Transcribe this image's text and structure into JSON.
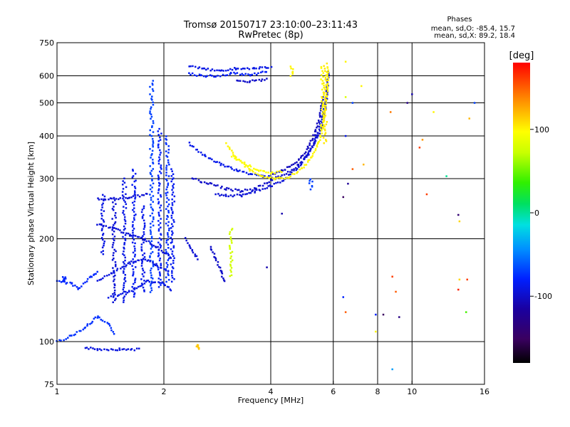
{
  "chart_data": {
    "type": "scatter",
    "title": "Tromsø 20150717 23:10:00–23:11:43",
    "subtitle": "RwPretec (8p)",
    "xlabel": "Frequency [MHz]",
    "ylabel": "Stationary phase Virtual Height [km]",
    "x_scale": "log",
    "y_scale": "log",
    "xlim": [
      1,
      16
    ],
    "ylim": [
      75,
      750
    ],
    "x_ticks": [
      1,
      2,
      4,
      6,
      8,
      10,
      16
    ],
    "x_tick_labels": [
      "1",
      "2",
      "4",
      "6",
      "8",
      "10",
      "16"
    ],
    "y_ticks": [
      75,
      100,
      200,
      300,
      400,
      500,
      600,
      750
    ],
    "y_tick_labels": [
      "75",
      "100",
      "200",
      "300",
      "400",
      "500",
      "600",
      "750"
    ],
    "grid": true,
    "info": {
      "heading": "Phases",
      "line_o": "mean, sd,O: -85.4, 15.7",
      "line_x": "mean, sd,X: 89.2, 18.4"
    },
    "colorbar": {
      "label": "[deg]",
      "range": [
        -180,
        180
      ],
      "ticks": [
        100,
        0,
        -100
      ],
      "tick_labels": [
        "100",
        "0",
        "-100"
      ]
    },
    "traces": [
      {
        "kind": "vline",
        "f": 1.05,
        "h0": 150,
        "h1": 155,
        "phase": -78
      },
      {
        "kind": "curve",
        "points": [
          [
            1.0,
            150
          ],
          [
            1.1,
            148
          ],
          [
            1.15,
            143
          ],
          [
            1.25,
            155
          ],
          [
            1.3,
            160
          ]
        ],
        "phase": -78
      },
      {
        "kind": "curve",
        "points": [
          [
            1.0,
            100
          ],
          [
            1.1,
            104
          ],
          [
            1.2,
            110
          ],
          [
            1.3,
            118
          ],
          [
            1.4,
            112
          ],
          [
            1.45,
            106
          ]
        ],
        "phase": -75
      },
      {
        "kind": "curve",
        "points": [
          [
            1.2,
            96
          ],
          [
            1.3,
            95
          ],
          [
            1.5,
            95
          ],
          [
            1.7,
            95
          ]
        ],
        "phase": -92
      },
      {
        "kind": "vline",
        "f": 1.35,
        "h0": 180,
        "h1": 270,
        "phase": -90
      },
      {
        "kind": "vline",
        "f": 1.45,
        "h0": 130,
        "h1": 260,
        "phase": -95
      },
      {
        "kind": "vline",
        "f": 1.55,
        "h0": 130,
        "h1": 300,
        "phase": -90
      },
      {
        "kind": "vline",
        "f": 1.65,
        "h0": 135,
        "h1": 320,
        "phase": -85
      },
      {
        "kind": "vline",
        "f": 1.75,
        "h0": 140,
        "h1": 250,
        "phase": -88
      },
      {
        "kind": "vline",
        "f": 1.85,
        "h0": 140,
        "h1": 580,
        "phase": -70
      },
      {
        "kind": "vline",
        "f": 1.95,
        "h0": 145,
        "h1": 420,
        "phase": -82
      },
      {
        "kind": "vline",
        "f": 2.05,
        "h0": 150,
        "h1": 400,
        "phase": -76
      },
      {
        "kind": "vline",
        "f": 2.12,
        "h0": 150,
        "h1": 320,
        "phase": -86
      },
      {
        "kind": "curve",
        "points": [
          [
            1.3,
            220
          ],
          [
            1.45,
            215
          ],
          [
            1.6,
            205
          ],
          [
            1.75,
            200
          ],
          [
            1.9,
            190
          ],
          [
            2.1,
            175
          ]
        ],
        "phase": -95
      },
      {
        "kind": "curve",
        "points": [
          [
            1.3,
            150
          ],
          [
            1.45,
            160
          ],
          [
            1.6,
            170
          ],
          [
            1.75,
            175
          ],
          [
            1.9,
            168
          ],
          [
            2.05,
            160
          ]
        ],
        "phase": -92
      },
      {
        "kind": "curve",
        "points": [
          [
            1.4,
            135
          ],
          [
            1.6,
            140
          ],
          [
            1.8,
            150
          ],
          [
            2.0,
            148
          ],
          [
            2.1,
            142
          ]
        ],
        "phase": -90
      },
      {
        "kind": "curve",
        "points": [
          [
            1.3,
            262
          ],
          [
            1.45,
            262
          ],
          [
            1.6,
            265
          ],
          [
            1.8,
            270
          ]
        ],
        "phase": -96
      },
      {
        "kind": "curve",
        "points": [
          [
            2.35,
            610
          ],
          [
            2.55,
            600
          ],
          [
            2.8,
            598
          ],
          [
            3.1,
            610
          ],
          [
            3.5,
            602
          ],
          [
            3.9,
            620
          ]
        ],
        "phase": -82
      },
      {
        "kind": "curve",
        "points": [
          [
            2.35,
            640
          ],
          [
            2.6,
            628
          ],
          [
            2.9,
            622
          ],
          [
            3.2,
            630
          ],
          [
            3.6,
            630
          ],
          [
            4.0,
            635
          ]
        ],
        "phase": -90
      },
      {
        "kind": "curve",
        "points": [
          [
            3.2,
            580
          ],
          [
            3.5,
            578
          ],
          [
            3.9,
            585
          ]
        ],
        "phase": -100
      },
      {
        "kind": "curve",
        "points": [
          [
            2.35,
            380
          ],
          [
            2.6,
            350
          ],
          [
            2.9,
            330
          ],
          [
            3.2,
            318
          ],
          [
            3.5,
            310
          ],
          [
            3.8,
            305
          ],
          [
            4.05,
            303
          ]
        ],
        "phase": -88
      },
      {
        "kind": "curve",
        "points": [
          [
            2.4,
            300
          ],
          [
            2.7,
            290
          ],
          [
            3.0,
            280
          ],
          [
            3.3,
            276
          ],
          [
            3.6,
            280
          ],
          [
            3.9,
            292
          ],
          [
            4.2,
            303
          ],
          [
            4.6,
            318
          ],
          [
            5.0,
            345
          ],
          [
            5.3,
            380
          ],
          [
            5.55,
            420
          ],
          [
            5.7,
            480
          ],
          [
            5.8,
            560
          ]
        ],
        "phase": -100
      },
      {
        "kind": "curve",
        "points": [
          [
            2.8,
            270
          ],
          [
            3.0,
            268
          ],
          [
            3.3,
            268
          ],
          [
            3.6,
            275
          ],
          [
            4.0,
            285
          ],
          [
            4.4,
            300
          ],
          [
            4.8,
            325
          ],
          [
            5.1,
            355
          ],
          [
            5.4,
            400
          ],
          [
            5.6,
            460
          ],
          [
            5.75,
            530
          ],
          [
            5.82,
            620
          ]
        ],
        "phase": -95
      },
      {
        "kind": "curve",
        "points": [
          [
            4.05,
            310
          ],
          [
            4.4,
            320
          ],
          [
            4.8,
            340
          ],
          [
            5.1,
            370
          ],
          [
            5.35,
            410
          ],
          [
            5.5,
            460
          ],
          [
            5.62,
            520
          ]
        ],
        "phase": -104
      },
      {
        "kind": "curve",
        "points": [
          [
            3.0,
            380
          ],
          [
            3.2,
            345
          ],
          [
            3.5,
            318
          ],
          [
            3.8,
            305
          ],
          [
            4.1,
            300
          ],
          [
            4.5,
            303
          ],
          [
            4.9,
            320
          ],
          [
            5.2,
            345
          ],
          [
            5.45,
            380
          ],
          [
            5.6,
            420
          ],
          [
            5.7,
            480
          ],
          [
            5.78,
            550
          ],
          [
            5.8,
            640
          ]
        ],
        "phase": 100
      },
      {
        "kind": "curve",
        "points": [
          [
            3.1,
            350
          ],
          [
            3.4,
            330
          ],
          [
            3.7,
            318
          ],
          [
            4.0,
            312
          ],
          [
            4.3,
            314
          ]
        ],
        "phase": 96
      },
      {
        "kind": "vline",
        "f": 5.6,
        "h0": 420,
        "h1": 640,
        "phase": 98
      },
      {
        "kind": "vline",
        "f": 5.7,
        "h0": 380,
        "h1": 650,
        "phase": 104
      },
      {
        "kind": "vline",
        "f": 3.1,
        "h0": 155,
        "h1": 215,
        "phase": 75
      },
      {
        "kind": "curve",
        "points": [
          [
            2.7,
            190
          ],
          [
            2.8,
            175
          ],
          [
            2.9,
            160
          ],
          [
            2.95,
            150
          ]
        ],
        "phase": -100
      },
      {
        "kind": "curve",
        "points": [
          [
            2.3,
            200
          ],
          [
            2.4,
            185
          ],
          [
            2.5,
            175
          ]
        ],
        "phase": -96
      },
      {
        "kind": "vline",
        "f": 2.5,
        "h0": 95,
        "h1": 98,
        "phase": 115
      },
      {
        "kind": "vline",
        "f": 5.2,
        "h0": 280,
        "h1": 300,
        "phase": -70
      },
      {
        "kind": "vline",
        "f": 4.6,
        "h0": 600,
        "h1": 640,
        "phase": 100
      }
    ],
    "scatter_points": [
      {
        "f": 6.5,
        "h": 660,
        "phase": 100
      },
      {
        "f": 7.2,
        "h": 560,
        "phase": 100
      },
      {
        "f": 6.8,
        "h": 500,
        "phase": -70
      },
      {
        "f": 6.5,
        "h": 520,
        "phase": 80
      },
      {
        "f": 8.7,
        "h": 470,
        "phase": 140
      },
      {
        "f": 9.7,
        "h": 500,
        "phase": -130
      },
      {
        "f": 10.0,
        "h": 530,
        "phase": -110
      },
      {
        "f": 11.5,
        "h": 470,
        "phase": 100
      },
      {
        "f": 14.5,
        "h": 450,
        "phase": 120
      },
      {
        "f": 15.0,
        "h": 500,
        "phase": -70
      },
      {
        "f": 10.7,
        "h": 390,
        "phase": 130
      },
      {
        "f": 10.5,
        "h": 370,
        "phase": 160
      },
      {
        "f": 6.8,
        "h": 320,
        "phase": 150
      },
      {
        "f": 7.3,
        "h": 330,
        "phase": 120
      },
      {
        "f": 6.4,
        "h": 265,
        "phase": -150
      },
      {
        "f": 6.6,
        "h": 290,
        "phase": -120
      },
      {
        "f": 11.0,
        "h": 270,
        "phase": 160
      },
      {
        "f": 12.5,
        "h": 305,
        "phase": 0
      },
      {
        "f": 13.5,
        "h": 235,
        "phase": -140
      },
      {
        "f": 13.6,
        "h": 225,
        "phase": 110
      },
      {
        "f": 4.3,
        "h": 237,
        "phase": -110
      },
      {
        "f": 6.4,
        "h": 135,
        "phase": -80
      },
      {
        "f": 6.5,
        "h": 122,
        "phase": 150
      },
      {
        "f": 7.9,
        "h": 120,
        "phase": -80
      },
      {
        "f": 8.3,
        "h": 120,
        "phase": -150
      },
      {
        "f": 8.8,
        "h": 155,
        "phase": 160
      },
      {
        "f": 9.0,
        "h": 140,
        "phase": 150
      },
      {
        "f": 9.2,
        "h": 118,
        "phase": -130
      },
      {
        "f": 7.9,
        "h": 107,
        "phase": 100
      },
      {
        "f": 8.8,
        "h": 83,
        "phase": -40
      },
      {
        "f": 13.6,
        "h": 152,
        "phase": 110
      },
      {
        "f": 14.3,
        "h": 152,
        "phase": 160
      },
      {
        "f": 14.2,
        "h": 122,
        "phase": 40
      },
      {
        "f": 13.5,
        "h": 142,
        "phase": 170
      },
      {
        "f": 3.9,
        "h": 165,
        "phase": -110
      },
      {
        "f": 6.5,
        "h": 400,
        "phase": -90
      }
    ]
  }
}
